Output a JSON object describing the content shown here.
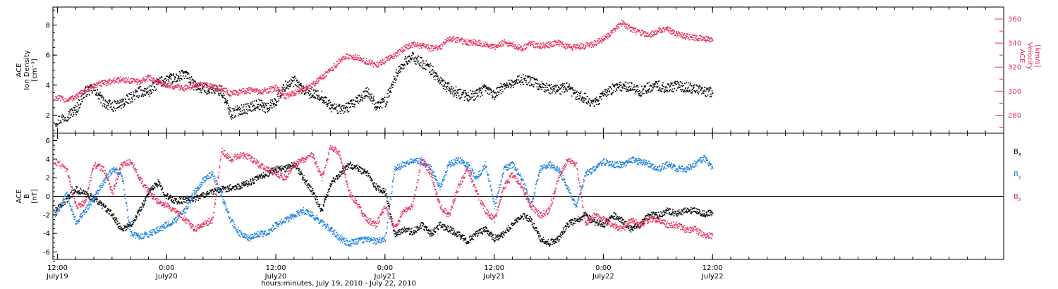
{
  "chart_data": {
    "type": "scatter",
    "xlabel": "hours:minutes, July 19, 2010 - July 22, 2010",
    "xrange_hours": [
      -0.5,
      104
    ],
    "x_ticks": [
      {
        "hours": 0,
        "time": "12:00",
        "date": "July19"
      },
      {
        "hours": 12,
        "time": "0:00",
        "date": "July20"
      },
      {
        "hours": 24,
        "time": "12:00",
        "date": "July20"
      },
      {
        "hours": 36,
        "time": "0:00",
        "date": "July21"
      },
      {
        "hours": 48,
        "time": "12:00",
        "date": "July21"
      },
      {
        "hours": 60,
        "time": "0:00",
        "date": "July22"
      },
      {
        "hours": 72,
        "time": "12:00",
        "date": "July22"
      }
    ],
    "panels": [
      {
        "id": "plasma",
        "left_axis": {
          "label_lines": [
            "ACE",
            "Ion Density",
            "[cm⁻³]"
          ],
          "range": [
            0.8,
            9.2
          ],
          "ticks": [
            "2",
            "4",
            "6",
            "8"
          ],
          "tick_values": [
            2,
            4,
            6,
            8
          ],
          "color": "#000000"
        },
        "right_axis": {
          "label_lines": [
            "ACE",
            "Velocity",
            "[km/s]"
          ],
          "range": [
            265,
            370
          ],
          "ticks": [
            "280",
            "300",
            "320",
            "340",
            "360"
          ],
          "tick_values": [
            280,
            300,
            320,
            340,
            360
          ],
          "color": "#e8325f"
        },
        "series": [
          {
            "axis": "left",
            "color": "#000000",
            "x": [
              -0.3,
              1,
              2,
              3,
              4,
              5,
              6,
              7,
              8,
              9,
              10,
              11,
              12,
              13,
              14,
              15,
              16,
              17,
              18,
              19,
              20,
              21,
              22,
              23,
              24,
              25,
              26,
              27,
              28,
              29,
              30,
              31,
              32,
              33,
              34,
              35,
              36,
              37,
              38,
              39,
              40,
              41,
              42,
              43,
              44,
              45,
              46,
              47,
              48,
              49,
              50,
              51,
              52,
              53,
              54,
              55,
              56,
              57,
              58,
              59,
              60,
              61,
              62,
              63,
              64,
              65,
              66,
              67,
              68,
              69,
              70,
              71,
              72
            ],
            "values": [
              1.6,
              2.0,
              2.4,
              3.6,
              3.8,
              2.9,
              2.6,
              2.8,
              3.2,
              3.6,
              3.6,
              4.2,
              4.4,
              4.5,
              4.8,
              4.0,
              3.8,
              3.8,
              3.6,
              2.1,
              2.4,
              2.5,
              2.8,
              2.5,
              3.0,
              4.0,
              4.3,
              3.7,
              3.4,
              3.3,
              2.6,
              2.4,
              2.6,
              3.0,
              3.6,
              2.7,
              2.9,
              4.5,
              5.5,
              5.9,
              5.5,
              5.1,
              4.3,
              3.8,
              3.5,
              3.3,
              3.4,
              3.8,
              3.4,
              4.0,
              4.2,
              4.4,
              4.3,
              4.0,
              3.8,
              3.7,
              3.9,
              3.3,
              3.2,
              2.8,
              3.4,
              3.8,
              4.0,
              3.9,
              3.6,
              3.9,
              4.0,
              3.8,
              4.0,
              3.9,
              3.8,
              3.6,
              3.6
            ]
          },
          {
            "axis": "right",
            "color": "#e8325f",
            "x": [
              -0.3,
              1,
              2,
              3,
              4,
              5,
              6,
              7,
              8,
              9,
              10,
              11,
              12,
              13,
              14,
              15,
              16,
              17,
              18,
              19,
              20,
              21,
              22,
              23,
              24,
              25,
              26,
              27,
              28,
              29,
              30,
              31,
              32,
              33,
              34,
              35,
              36,
              37,
              38,
              39,
              40,
              41,
              42,
              43,
              44,
              45,
              46,
              47,
              48,
              49,
              50,
              51,
              52,
              53,
              54,
              55,
              56,
              57,
              58,
              59,
              60,
              61,
              62,
              63,
              64,
              65,
              66,
              67,
              68,
              69,
              70,
              71,
              72
            ],
            "values": [
              295,
              293,
              296,
              301,
              305,
              307,
              309,
              310,
              309,
              308,
              312,
              308,
              305,
              304,
              303,
              305,
              306,
              304,
              303,
              298,
              300,
              301,
              300,
              301,
              303,
              296,
              299,
              302,
              306,
              312,
              318,
              326,
              330,
              328,
              325,
              322,
              326,
              330,
              336,
              339,
              338,
              336,
              337,
              344,
              343,
              341,
              341,
              339,
              337,
              341,
              339,
              336,
              340,
              338,
              339,
              341,
              337,
              337,
              338,
              340,
              344,
              350,
              357,
              352,
              349,
              347,
              351,
              352,
              348,
              346,
              345,
              344,
              343
            ]
          }
        ]
      },
      {
        "id": "field",
        "left_axis": {
          "label_lines": [
            "ACE",
            "B",
            "[nT]"
          ],
          "range": [
            -6.8,
            6.8
          ],
          "ticks": [
            "-6",
            "-4",
            "-2",
            "0",
            "2",
            "4",
            "6"
          ],
          "tick_values": [
            -6,
            -4,
            -2,
            0,
            2,
            4,
            6
          ],
          "color": "#000000"
        },
        "zero_line": true,
        "legend_position": "right",
        "series": [
          {
            "name": "Bx",
            "legend_base": "B",
            "legend_sub": "x",
            "color": "#000000",
            "x": [
              -0.3,
              1,
              2,
              3,
              4,
              5,
              6,
              7,
              8,
              9,
              10,
              11,
              12,
              13,
              14,
              15,
              16,
              17,
              18,
              19,
              20,
              21,
              22,
              23,
              24,
              25,
              26,
              27,
              28,
              29,
              30,
              31,
              32,
              33,
              34,
              35,
              36,
              37,
              38,
              39,
              40,
              41,
              42,
              43,
              44,
              45,
              46,
              47,
              48,
              49,
              50,
              51,
              52,
              53,
              54,
              55,
              56,
              57,
              58,
              59,
              60,
              61,
              62,
              63,
              64,
              65,
              66,
              67,
              68,
              69,
              70,
              71,
              72
            ],
            "values": [
              -1.5,
              -0.3,
              0.8,
              0.3,
              -0.2,
              -1.0,
              -2.0,
              -3.5,
              -3.0,
              -1.5,
              0.5,
              1.5,
              0.0,
              -0.5,
              -0.3,
              -0.2,
              0.2,
              0.5,
              0.8,
              1.0,
              1.2,
              1.5,
              2.0,
              2.5,
              3.0,
              3.0,
              3.5,
              2.0,
              0.5,
              -1.5,
              1.5,
              2.5,
              3.5,
              3.0,
              2.5,
              1.0,
              0.5,
              -4.0,
              -3.5,
              -3.8,
              -3.0,
              -4.0,
              -3.0,
              -3.5,
              -4.0,
              -4.8,
              -4.0,
              -3.5,
              -4.5,
              -4.0,
              -3.0,
              -2.0,
              -2.5,
              -4.5,
              -5.0,
              -4.5,
              -3.0,
              -2.5,
              -2.0,
              -2.8,
              -3.0,
              -2.0,
              -2.5,
              -3.5,
              -3.0,
              -2.0,
              -2.0,
              -1.5,
              -1.8,
              -1.5,
              -1.5,
              -1.8,
              -1.8
            ]
          },
          {
            "name": "By",
            "legend_base": "B",
            "legend_sub": "y",
            "color": "#1a7fe0",
            "x": [
              -0.3,
              1,
              2,
              3,
              4,
              5,
              6,
              7,
              8,
              9,
              10,
              11,
              12,
              13,
              14,
              15,
              16,
              17,
              18,
              19,
              20,
              21,
              22,
              23,
              24,
              25,
              26,
              27,
              28,
              29,
              30,
              31,
              32,
              33,
              34,
              35,
              36,
              37,
              38,
              39,
              40,
              41,
              42,
              43,
              44,
              45,
              46,
              47,
              48,
              49,
              50,
              51,
              52,
              53,
              54,
              55,
              56,
              57,
              58,
              59,
              60,
              61,
              62,
              63,
              64,
              65,
              66,
              67,
              68,
              69,
              70,
              71,
              72
            ],
            "values": [
              -2.0,
              0.3,
              -2.8,
              -1.5,
              0.0,
              1.5,
              3.0,
              2.5,
              -4.0,
              -4.3,
              -4.0,
              -3.5,
              -3.0,
              -2.5,
              -1.5,
              0.5,
              1.8,
              2.5,
              0.0,
              -2.5,
              -4.0,
              -4.5,
              -4.0,
              -4.0,
              -3.0,
              -2.5,
              -2.0,
              -1.5,
              -2.0,
              -2.8,
              -3.5,
              -4.5,
              -5.0,
              -4.8,
              -4.5,
              -4.8,
              -4.5,
              3.0,
              3.5,
              4.0,
              3.8,
              3.0,
              1.0,
              3.5,
              4.0,
              3.5,
              2.0,
              3.5,
              -1.0,
              3.0,
              3.5,
              2.0,
              -1.0,
              3.0,
              3.5,
              3.0,
              1.0,
              -1.0,
              2.5,
              3.0,
              3.8,
              3.5,
              3.5,
              4.0,
              3.8,
              3.5,
              3.0,
              3.5,
              3.0,
              3.0,
              3.5,
              4.2,
              3.0
            ]
          },
          {
            "name": "Bz",
            "legend_base": "B",
            "legend_sub": "z",
            "color": "#e8325f",
            "x": [
              -0.3,
              1,
              2,
              3,
              4,
              5,
              6,
              7,
              8,
              9,
              10,
              11,
              12,
              13,
              14,
              15,
              16,
              17,
              18,
              19,
              20,
              21,
              22,
              23,
              24,
              25,
              26,
              27,
              28,
              29,
              30,
              31,
              32,
              33,
              34,
              35,
              36,
              37,
              38,
              39,
              40,
              41,
              42,
              43,
              44,
              45,
              46,
              47,
              48,
              49,
              50,
              51,
              52,
              53,
              54,
              55,
              56,
              57,
              58,
              59,
              60,
              61,
              62,
              63,
              64,
              65,
              66,
              67,
              68,
              69,
              70,
              71,
              72
            ],
            "values": [
              3.8,
              3.0,
              -1.0,
              -0.5,
              3.5,
              3.0,
              0.5,
              3.5,
              3.8,
              2.0,
              0.5,
              -0.5,
              -1.0,
              -1.5,
              -2.5,
              -3.5,
              -3.0,
              -2.5,
              5.0,
              4.0,
              4.5,
              4.3,
              3.5,
              3.0,
              2.5,
              2.0,
              3.5,
              4.0,
              4.5,
              2.0,
              5.5,
              4.5,
              0.5,
              -1.0,
              -2.5,
              -3.0,
              -1.0,
              -3.5,
              -1.5,
              -1.0,
              4.0,
              2.5,
              -1.0,
              -2.0,
              1.0,
              3.0,
              0.5,
              -1.5,
              -2.5,
              1.0,
              2.5,
              1.0,
              -1.0,
              -2.0,
              -1.5,
              2.0,
              4.0,
              3.5,
              -3.0,
              -2.0,
              -2.5,
              -3.0,
              -3.5,
              -2.5,
              -3.0,
              -2.5,
              -2.5,
              -3.0,
              -3.0,
              -3.5,
              -3.5,
              -4.2,
              -4.2
            ]
          }
        ]
      }
    ]
  }
}
